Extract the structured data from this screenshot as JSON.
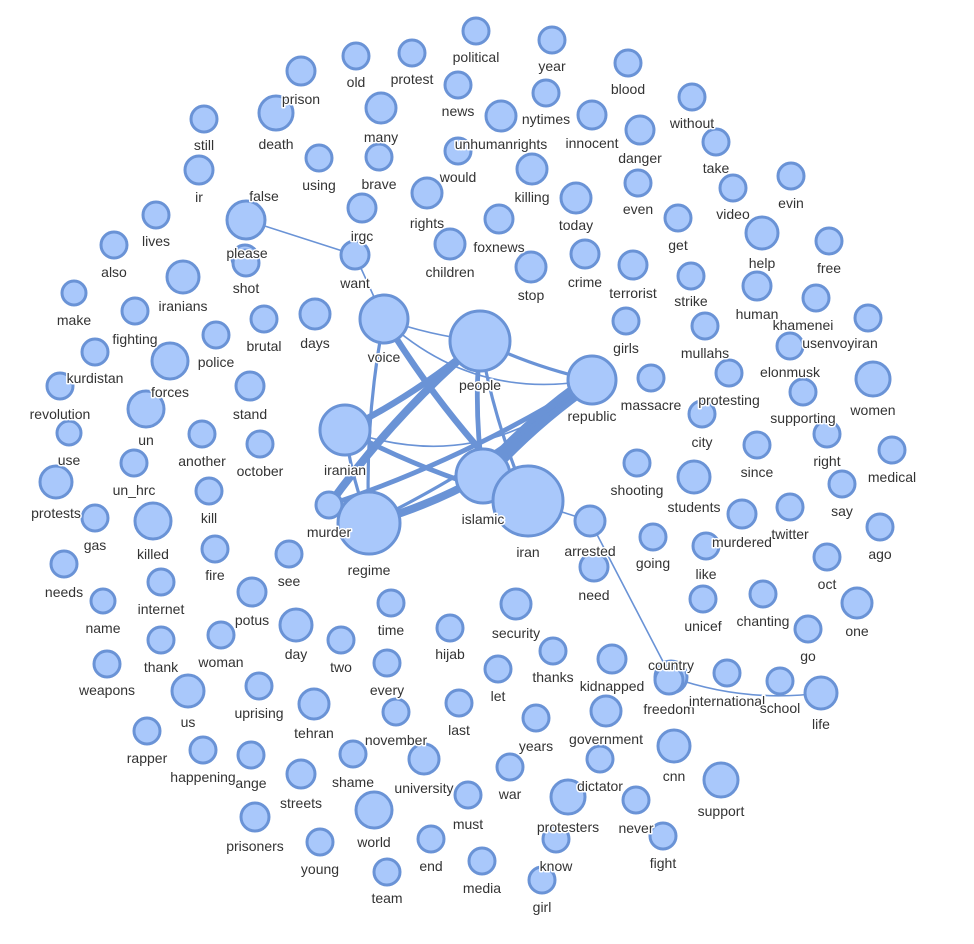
{
  "nodes": [
    {
      "id": "political",
      "label": "political"
    },
    {
      "id": "old",
      "label": "old"
    },
    {
      "id": "protest",
      "label": "protest"
    },
    {
      "id": "year",
      "label": "year"
    },
    {
      "id": "prison",
      "label": "prison"
    },
    {
      "id": "blood",
      "label": "blood"
    },
    {
      "id": "news",
      "label": "news"
    },
    {
      "id": "nytimes",
      "label": "nytimes"
    },
    {
      "id": "without",
      "label": "without"
    },
    {
      "id": "many",
      "label": "many"
    },
    {
      "id": "innocent",
      "label": "innocent"
    },
    {
      "id": "still",
      "label": "still"
    },
    {
      "id": "death",
      "label": "death"
    },
    {
      "id": "unhumanrights",
      "label": "unhumanrights"
    },
    {
      "id": "danger",
      "label": "danger"
    },
    {
      "id": "using",
      "label": "using"
    },
    {
      "id": "brave",
      "label": "brave"
    },
    {
      "id": "would",
      "label": "would"
    },
    {
      "id": "take",
      "label": "take"
    },
    {
      "id": "ir",
      "label": "ir"
    },
    {
      "id": "false",
      "label": "false"
    },
    {
      "id": "killing",
      "label": "killing"
    },
    {
      "id": "even",
      "label": "even"
    },
    {
      "id": "evin",
      "label": "evin"
    },
    {
      "id": "video",
      "label": "video"
    },
    {
      "id": "rights",
      "label": "rights"
    },
    {
      "id": "today",
      "label": "today"
    },
    {
      "id": "irgc",
      "label": "irgc"
    },
    {
      "id": "lives",
      "label": "lives"
    },
    {
      "id": "please",
      "label": "please"
    },
    {
      "id": "foxnews",
      "label": "foxnews"
    },
    {
      "id": "get",
      "label": "get"
    },
    {
      "id": "children",
      "label": "children"
    },
    {
      "id": "also",
      "label": "also"
    },
    {
      "id": "help",
      "label": "help"
    },
    {
      "id": "free",
      "label": "free"
    },
    {
      "id": "shot",
      "label": "shot"
    },
    {
      "id": "want",
      "label": "want"
    },
    {
      "id": "crime",
      "label": "crime"
    },
    {
      "id": "stop",
      "label": "stop"
    },
    {
      "id": "terrorist",
      "label": "terrorist"
    },
    {
      "id": "strike",
      "label": "strike"
    },
    {
      "id": "human",
      "label": "human"
    },
    {
      "id": "make",
      "label": "make"
    },
    {
      "id": "iranians",
      "label": "iranians"
    },
    {
      "id": "days",
      "label": "days"
    },
    {
      "id": "brutal",
      "label": "brutal"
    },
    {
      "id": "khamenei",
      "label": "khamenei"
    },
    {
      "id": "fighting",
      "label": "fighting"
    },
    {
      "id": "voice",
      "label": "voice"
    },
    {
      "id": "police",
      "label": "police"
    },
    {
      "id": "people",
      "label": "people"
    },
    {
      "id": "girls",
      "label": "girls"
    },
    {
      "id": "mullahs",
      "label": "mullahs"
    },
    {
      "id": "usenvoyiran",
      "label": "usenvoyiran"
    },
    {
      "id": "kurdistan",
      "label": "kurdistan"
    },
    {
      "id": "elonmusk",
      "label": "elonmusk"
    },
    {
      "id": "republic",
      "label": "republic"
    },
    {
      "id": "revolution",
      "label": "revolution"
    },
    {
      "id": "forces",
      "label": "forces"
    },
    {
      "id": "stand",
      "label": "stand"
    },
    {
      "id": "massacre",
      "label": "massacre"
    },
    {
      "id": "protesting",
      "label": "protesting"
    },
    {
      "id": "women",
      "label": "women"
    },
    {
      "id": "un",
      "label": "un"
    },
    {
      "id": "supporting",
      "label": "supporting"
    },
    {
      "id": "city",
      "label": "city"
    },
    {
      "id": "another",
      "label": "another"
    },
    {
      "id": "iranian",
      "label": "iranian"
    },
    {
      "id": "since",
      "label": "since"
    },
    {
      "id": "use",
      "label": "use"
    },
    {
      "id": "october",
      "label": "october"
    },
    {
      "id": "right",
      "label": "right"
    },
    {
      "id": "medical",
      "label": "medical"
    },
    {
      "id": "un_hrc",
      "label": "un_hrc"
    },
    {
      "id": "shooting",
      "label": "shooting"
    },
    {
      "id": "protests",
      "label": "protests"
    },
    {
      "id": "kill",
      "label": "kill"
    },
    {
      "id": "islamic",
      "label": "islamic"
    },
    {
      "id": "students",
      "label": "students"
    },
    {
      "id": "say",
      "label": "say"
    },
    {
      "id": "twitter",
      "label": "twitter"
    },
    {
      "id": "murder",
      "label": "murder"
    },
    {
      "id": "gas",
      "label": "gas"
    },
    {
      "id": "iran",
      "label": "iran"
    },
    {
      "id": "arrested",
      "label": "arrested"
    },
    {
      "id": "murdered",
      "label": "murdered"
    },
    {
      "id": "ago",
      "label": "ago"
    },
    {
      "id": "killed",
      "label": "killed"
    },
    {
      "id": "regime",
      "label": "regime"
    },
    {
      "id": "going",
      "label": "going"
    },
    {
      "id": "fire",
      "label": "fire"
    },
    {
      "id": "see",
      "label": "see"
    },
    {
      "id": "like",
      "label": "like"
    },
    {
      "id": "needs",
      "label": "needs"
    },
    {
      "id": "oct",
      "label": "oct"
    },
    {
      "id": "internet",
      "label": "internet"
    },
    {
      "id": "need",
      "label": "need"
    },
    {
      "id": "chanting",
      "label": "chanting"
    },
    {
      "id": "one",
      "label": "one"
    },
    {
      "id": "name",
      "label": "name"
    },
    {
      "id": "potus",
      "label": "potus"
    },
    {
      "id": "time",
      "label": "time"
    },
    {
      "id": "security",
      "label": "security"
    },
    {
      "id": "unicef",
      "label": "unicef"
    },
    {
      "id": "day",
      "label": "day"
    },
    {
      "id": "hijab",
      "label": "hijab"
    },
    {
      "id": "go",
      "label": "go"
    },
    {
      "id": "thank",
      "label": "thank"
    },
    {
      "id": "woman",
      "label": "woman"
    },
    {
      "id": "two",
      "label": "two"
    },
    {
      "id": "thanks",
      "label": "thanks"
    },
    {
      "id": "country",
      "label": "country"
    },
    {
      "id": "weapons",
      "label": "weapons"
    },
    {
      "id": "every",
      "label": "every"
    },
    {
      "id": "let",
      "label": "let"
    },
    {
      "id": "kidnapped",
      "label": "kidnapped"
    },
    {
      "id": "us",
      "label": "us"
    },
    {
      "id": "uprising",
      "label": "uprising"
    },
    {
      "id": "freedom",
      "label": "freedom"
    },
    {
      "id": "international",
      "label": "international"
    },
    {
      "id": "school",
      "label": "school"
    },
    {
      "id": "life",
      "label": "life"
    },
    {
      "id": "tehran",
      "label": "tehran"
    },
    {
      "id": "last",
      "label": "last"
    },
    {
      "id": "rapper",
      "label": "rapper"
    },
    {
      "id": "november",
      "label": "november"
    },
    {
      "id": "years",
      "label": "years"
    },
    {
      "id": "government",
      "label": "government"
    },
    {
      "id": "happening",
      "label": "happening"
    },
    {
      "id": "change",
      "label": "​ange"
    },
    {
      "id": "shame",
      "label": "shame"
    },
    {
      "id": "cnn",
      "label": "cnn"
    },
    {
      "id": "support",
      "label": "support"
    },
    {
      "id": "university",
      "label": "university"
    },
    {
      "id": "war",
      "label": "war"
    },
    {
      "id": "dictator",
      "label": "dictator"
    },
    {
      "id": "streets",
      "label": "streets"
    },
    {
      "id": "must",
      "label": "must"
    },
    {
      "id": "protesters",
      "label": "protesters"
    },
    {
      "id": "never",
      "label": "never"
    },
    {
      "id": "prisoners",
      "label": "prisoners"
    },
    {
      "id": "world",
      "label": "world"
    },
    {
      "id": "fight",
      "label": "fight"
    },
    {
      "id": "young",
      "label": "young"
    },
    {
      "id": "end",
      "label": "end"
    },
    {
      "id": "know",
      "label": "know"
    },
    {
      "id": "media",
      "label": "media"
    },
    {
      "id": "team",
      "label": "team"
    },
    {
      "id": "girl",
      "label": "girl"
    }
  ],
  "edges": [
    {
      "source": "republic",
      "target": "islamic",
      "weight": 10
    },
    {
      "source": "people",
      "target": "murder",
      "weight": 5
    },
    {
      "source": "iranian",
      "target": "people",
      "weight": 4
    },
    {
      "source": "regime",
      "target": "islamic",
      "weight": 5
    },
    {
      "source": "voice",
      "target": "iran",
      "weight": 4
    },
    {
      "source": "people",
      "target": "islamic",
      "weight": 3
    },
    {
      "source": "murder",
      "target": "republic",
      "weight": 3
    },
    {
      "source": "iranian",
      "target": "iran",
      "weight": 3
    },
    {
      "source": "people",
      "target": "iran",
      "weight": 2
    },
    {
      "source": "regime",
      "target": "republic",
      "weight": 2
    },
    {
      "source": "voice",
      "target": "regime",
      "weight": 2
    },
    {
      "source": "people",
      "target": "republic",
      "weight": 2
    },
    {
      "source": "iranian",
      "target": "regime",
      "weight": 2
    },
    {
      "source": "iranian",
      "target": "republic",
      "weight": 1
    },
    {
      "source": "voice",
      "target": "republic",
      "weight": 1
    },
    {
      "source": "voice",
      "target": "people",
      "weight": 1
    },
    {
      "source": "false",
      "target": "want",
      "weight": 1
    },
    {
      "source": "want",
      "target": "voice",
      "weight": 1
    },
    {
      "source": "iran",
      "target": "arrested",
      "weight": 1
    },
    {
      "source": "arrested",
      "target": "country",
      "weight": 1
    },
    {
      "source": "country",
      "target": "life",
      "weight": 1
    },
    {
      "source": "islamic",
      "target": "iran",
      "weight": 2
    }
  ]
}
